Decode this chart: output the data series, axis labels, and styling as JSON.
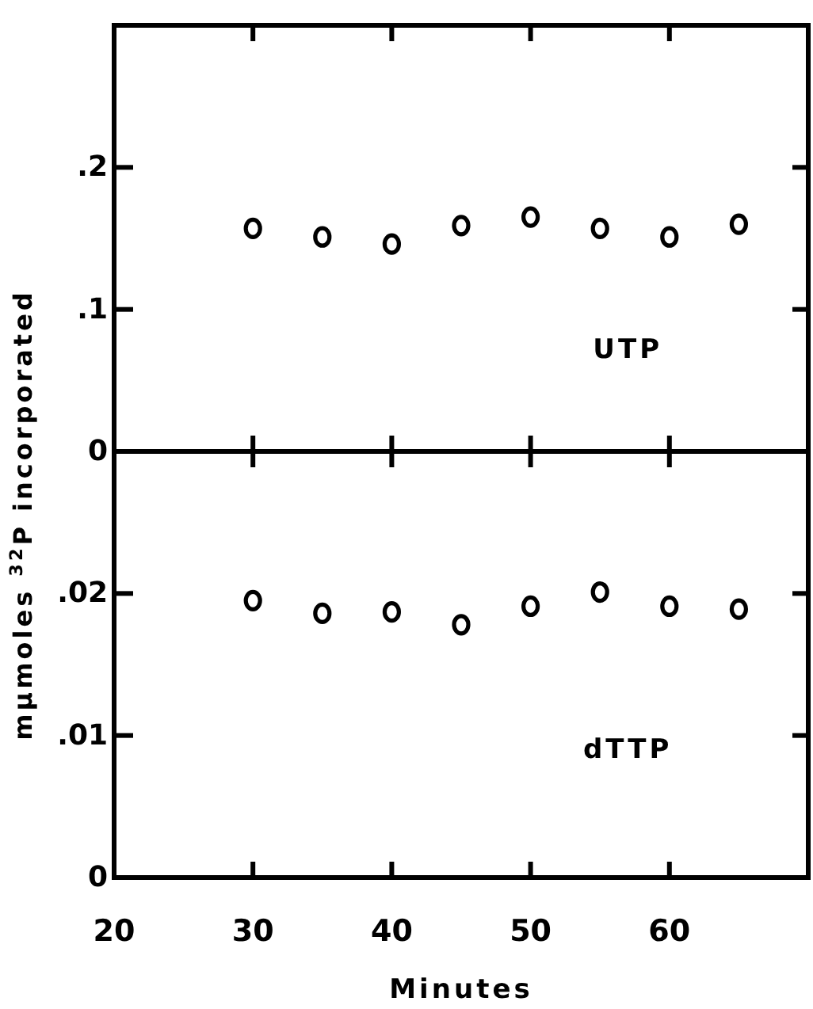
{
  "chart_data": [
    {
      "type": "scatter",
      "ylabel": "mμmoles $^{32}$P incorporated",
      "x": [
        30,
        35,
        40,
        45,
        50,
        55,
        60,
        65
      ],
      "series": [
        {
          "name": "UTP",
          "color": "#000000",
          "values": [
            0.157,
            0.151,
            0.146,
            0.159,
            0.165,
            0.157,
            0.151,
            0.16
          ]
        }
      ],
      "xlim": [
        20,
        70
      ],
      "xticks": [
        20,
        30,
        40,
        50,
        60
      ],
      "ylim": [
        0,
        0.3
      ],
      "yticks": [
        0,
        {
          "value": 0.1,
          "label": ".1"
        },
        {
          "value": 0.2,
          "label": ".2"
        }
      ],
      "tick_labels": "y",
      "marker": "circle",
      "grid": false
    },
    {
      "type": "scatter",
      "xlabel": "Minutes",
      "x": [
        30,
        35,
        40,
        45,
        50,
        55,
        60,
        65
      ],
      "series": [
        {
          "name": "dTTP",
          "color": "#000000",
          "values": [
            0.0195,
            0.0186,
            0.0187,
            0.0178,
            0.0191,
            0.0201,
            0.0191,
            0.0189
          ]
        }
      ],
      "xlim": [
        20,
        70
      ],
      "xticks": [
        20,
        30,
        40,
        50,
        60
      ],
      "ylim": [
        0,
        0.03
      ],
      "yticks": [
        0,
        {
          "value": 0.01,
          "label": ".01"
        },
        {
          "value": 0.02,
          "label": ".02"
        }
      ],
      "marker": "circle",
      "grid": false
    }
  ]
}
